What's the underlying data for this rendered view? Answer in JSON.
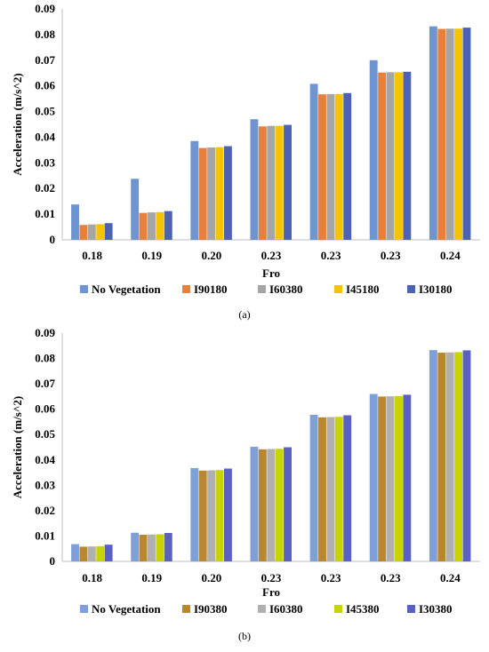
{
  "chart_data": [
    {
      "type": "bar",
      "caption": "(a)",
      "xlabel": "Fro",
      "ylabel": "Acceleration (m/s^2)",
      "ylim": [
        0,
        0.09
      ],
      "yticks": [
        "0",
        "0.01",
        "0.02",
        "0.03",
        "0.04",
        "0.05",
        "0.06",
        "0.07",
        "0.08",
        "0.09"
      ],
      "categories": [
        "0.18",
        "0.19",
        "0.20",
        "0.23",
        "0.23",
        "0.23",
        "0.24"
      ],
      "legend_position": "bottom",
      "grid": false,
      "series": [
        {
          "name": "No Vegetation",
          "color": "#6f95d0",
          "values": [
            0.0138,
            0.0238,
            0.0385,
            0.047,
            0.0608,
            0.07,
            0.0832
          ]
        },
        {
          "name": "I90180",
          "color": "#e8803a",
          "values": [
            0.0058,
            0.0105,
            0.0358,
            0.0442,
            0.0567,
            0.0652,
            0.0822
          ]
        },
        {
          "name": "I60380",
          "color": "#a5a5a5",
          "values": [
            0.006,
            0.0107,
            0.036,
            0.0444,
            0.0568,
            0.0653,
            0.0823
          ]
        },
        {
          "name": "I45180",
          "color": "#f5c400",
          "values": [
            0.0061,
            0.0108,
            0.0361,
            0.0444,
            0.0568,
            0.0653,
            0.0823
          ]
        },
        {
          "name": "I30180",
          "color": "#4b62b5",
          "values": [
            0.0065,
            0.0112,
            0.0365,
            0.0448,
            0.0572,
            0.0655,
            0.0827
          ]
        }
      ]
    },
    {
      "type": "bar",
      "caption": "(b)",
      "xlabel": "Fro",
      "ylabel": "Acceleration (m/s^2)",
      "ylim": [
        0,
        0.09
      ],
      "yticks": [
        "0",
        "0.01",
        "0.02",
        "0.03",
        "0.04",
        "0.05",
        "0.06",
        "0.07",
        "0.08",
        "0.09"
      ],
      "categories": [
        "0.18",
        "0.19",
        "0.20",
        "0.23",
        "0.23",
        "0.23",
        "0.24"
      ],
      "legend_position": "bottom",
      "grid": false,
      "series": [
        {
          "name": "No Vegetation",
          "color": "#7f9fd9",
          "values": [
            0.0068,
            0.0113,
            0.0368,
            0.0452,
            0.0578,
            0.066,
            0.0833
          ]
        },
        {
          "name": "I90380",
          "color": "#b8872e",
          "values": [
            0.0058,
            0.0105,
            0.0358,
            0.0442,
            0.0568,
            0.065,
            0.0823
          ]
        },
        {
          "name": "I60380",
          "color": "#b0b0b0",
          "values": [
            0.0059,
            0.0106,
            0.0359,
            0.0443,
            0.0569,
            0.0651,
            0.0824
          ]
        },
        {
          "name": "I45380",
          "color": "#c8d400",
          "values": [
            0.006,
            0.0107,
            0.036,
            0.0444,
            0.057,
            0.0652,
            0.0825
          ]
        },
        {
          "name": "I30380",
          "color": "#5a61c0",
          "values": [
            0.0066,
            0.0112,
            0.0366,
            0.045,
            0.0576,
            0.0657,
            0.0832
          ]
        }
      ]
    }
  ]
}
